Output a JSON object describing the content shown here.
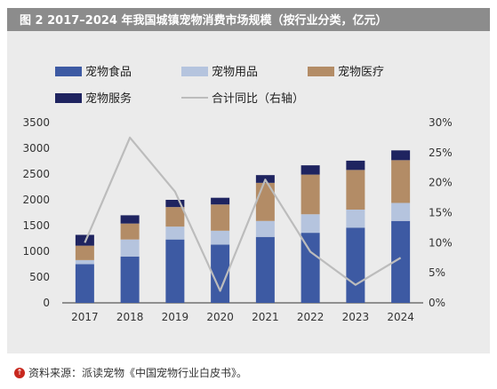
{
  "title": "图 2   2017–2024 年我国城镇宠物消费市场规模（按行业分类，亿元）",
  "source": "资料来源：派读宠物《中国宠物行业白皮书》。",
  "chart_data": {
    "type": "bar",
    "stacked": true,
    "categories": [
      "2017",
      "2018",
      "2019",
      "2020",
      "2021",
      "2022",
      "2023",
      "2024"
    ],
    "series": [
      {
        "name": "宠物食品",
        "color": "#3d5aa3",
        "values": [
          750,
          900,
          1230,
          1130,
          1280,
          1360,
          1460,
          1590
        ]
      },
      {
        "name": "宠物用品",
        "color": "#b5c4de",
        "values": [
          80,
          330,
          250,
          270,
          310,
          360,
          350,
          350
        ]
      },
      {
        "name": "宠物医疗",
        "color": "#b38c66",
        "values": [
          280,
          310,
          380,
          510,
          740,
          770,
          770,
          830
        ]
      },
      {
        "name": "宠物服务",
        "color": "#1f2460",
        "values": [
          210,
          160,
          140,
          130,
          150,
          180,
          180,
          190
        ]
      }
    ],
    "line": {
      "name": "合计同比（右轴）",
      "color": "#bcbcbc",
      "values": [
        10,
        27.5,
        18.5,
        2,
        20.5,
        8.5,
        3,
        7.5
      ]
    },
    "y_left": {
      "min": 0,
      "max": 3500,
      "ticks": [
        "0",
        "500",
        "1000",
        "1500",
        "2000",
        "2500",
        "3000",
        "3500"
      ]
    },
    "y_right": {
      "min": 0,
      "max": 30,
      "ticks": [
        "0%",
        "5%",
        "10%",
        "15%",
        "20%",
        "25%",
        "30%"
      ]
    },
    "legend_position": "top",
    "grid": false
  }
}
